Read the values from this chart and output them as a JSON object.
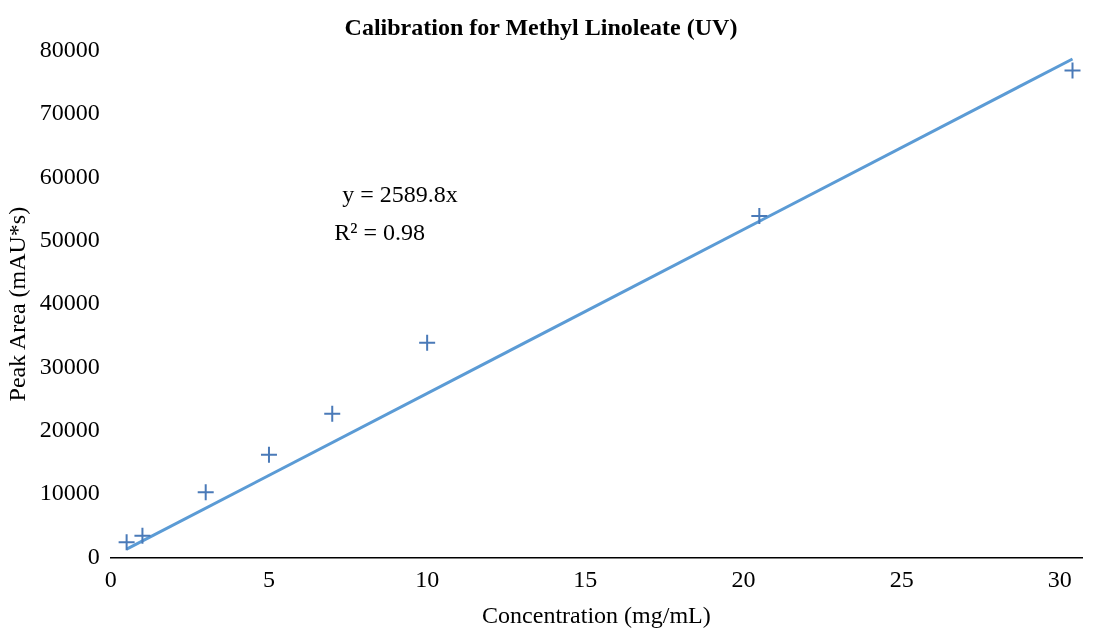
{
  "chart_data": {
    "type": "scatter",
    "title": "Calibration for Methyl Linoleate (UV)",
    "xlabel": "Concentration (mg/mL)",
    "ylabel": "Peak Area (mAU*s)",
    "series": [
      {
        "marker": "cross",
        "color": "#4a7ab8",
        "x": [
          0.5,
          1,
          3,
          5,
          7,
          10,
          20.5,
          30.4
        ],
        "values": [
          2400,
          3400,
          10300,
          16200,
          22700,
          33900,
          53900,
          76900
        ]
      },
      {
        "type": "line",
        "color": "#5b9bd5",
        "x": [
          0.5,
          30.4
        ],
        "values": [
          1300,
          78700
        ]
      }
    ],
    "xlim": [
      0,
      30.7
    ],
    "xticks": [
      0,
      5,
      10,
      15,
      20,
      25,
      30
    ],
    "ylim": [
      0,
      80000
    ],
    "yticks": [
      0,
      10000,
      20000,
      30000,
      40000,
      50000,
      60000,
      70000,
      80000
    ],
    "annotations": [
      "y = 2589.8x",
      "R² = 0.98"
    ],
    "grid": false,
    "legend": false,
    "line_style": "solid"
  }
}
